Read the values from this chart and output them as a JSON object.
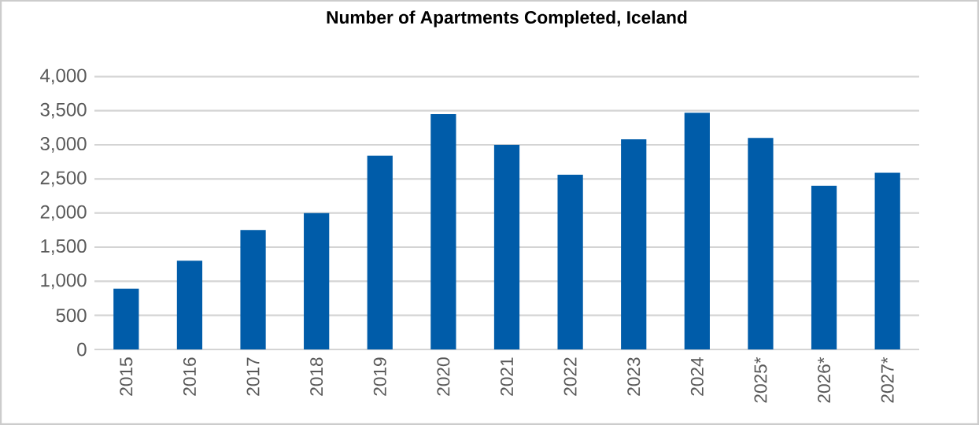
{
  "chart_data": {
    "type": "bar",
    "title": "Number of Apartments Completed, Iceland",
    "categories": [
      "2015",
      "2016",
      "2017",
      "2018",
      "2019",
      "2020",
      "2021",
      "2022",
      "2023",
      "2024",
      "2025*",
      "2026*",
      "2027*"
    ],
    "values": [
      890,
      1300,
      1750,
      2000,
      2840,
      3450,
      3000,
      2560,
      3080,
      3470,
      3100,
      2400,
      2590
    ],
    "color": "#005ca9",
    "ylim": [
      0,
      4000
    ],
    "yticks": [
      {
        "value": 0,
        "label": "0"
      },
      {
        "value": 500,
        "label": "500"
      },
      {
        "value": 1000,
        "label": "1,000"
      },
      {
        "value": 1500,
        "label": "1,500"
      },
      {
        "value": 2000,
        "label": "2,000"
      },
      {
        "value": 2500,
        "label": "2,500"
      },
      {
        "value": 3000,
        "label": "3,000"
      },
      {
        "value": 3500,
        "label": "3,500"
      },
      {
        "value": 4000,
        "label": "4,000"
      }
    ],
    "grid": "y"
  }
}
